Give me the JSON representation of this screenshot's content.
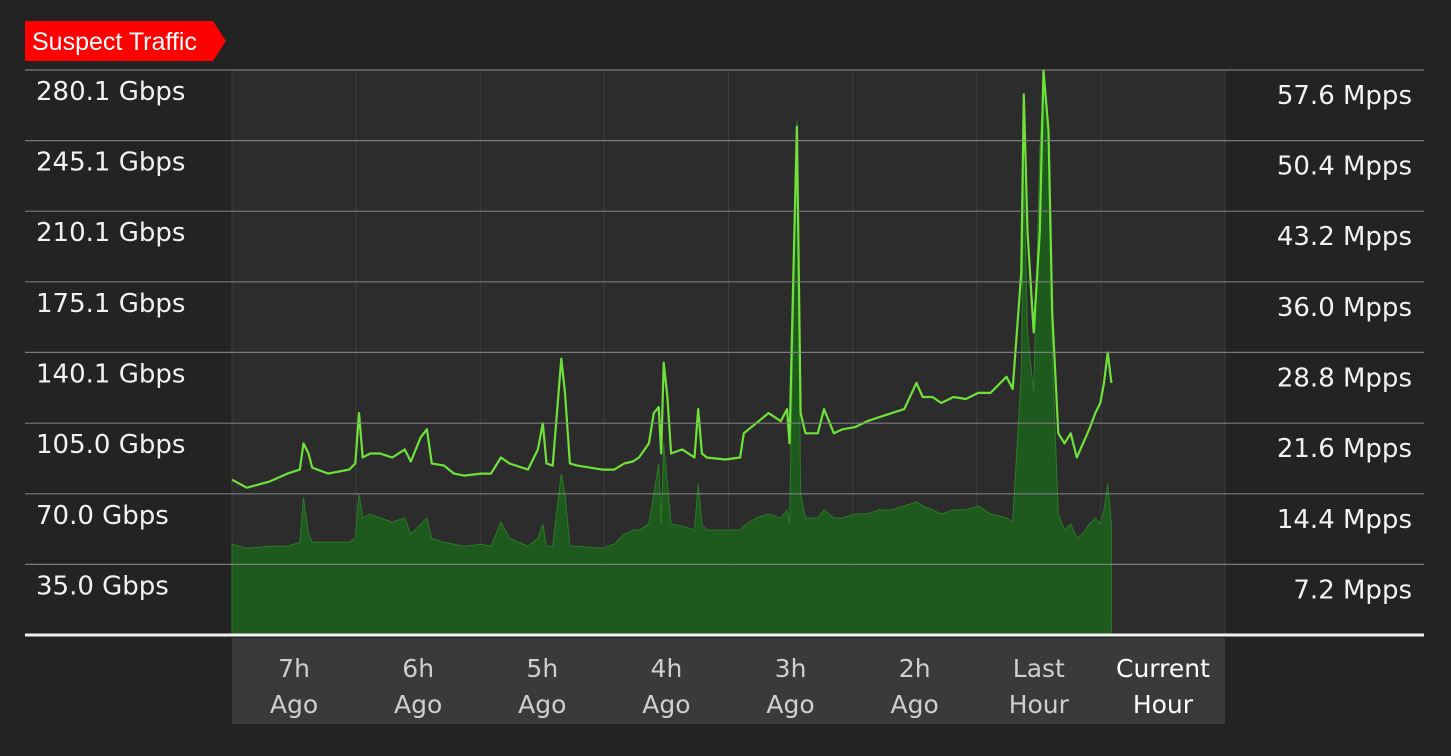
{
  "colors": {
    "background": "#232323",
    "plot_background": "#2c2c2c",
    "gridline": "#8a8a8a",
    "baseline": "#f2f2f2",
    "badge": "#ff0000",
    "text": "#f2f2f2",
    "line_series": "#6fe23a",
    "area_series": "#1d5c1d",
    "x_axis_band": "#3a3a3a"
  },
  "chart_data": {
    "type": "line",
    "title": "Suspect Traffic",
    "grid": true,
    "left_axis": {
      "unit": "Gbps",
      "ylim": [
        0,
        280.1
      ],
      "ticks": [
        35.0,
        70.0,
        105.0,
        140.1,
        175.1,
        210.1,
        245.1,
        280.1
      ],
      "tick_labels": [
        "35.0 Gbps",
        "70.0 Gbps",
        "105.0 Gbps",
        "140.1 Gbps",
        "175.1 Gbps",
        "210.1 Gbps",
        "245.1 Gbps",
        "280.1 Gbps"
      ]
    },
    "right_axis": {
      "unit": "Mpps",
      "ylim": [
        0,
        57.6
      ],
      "ticks": [
        7.2,
        14.4,
        21.6,
        28.8,
        36.0,
        43.2,
        50.4,
        57.6
      ],
      "tick_labels": [
        "7.2 Mpps",
        "14.4 Mpps",
        "21.6 Mpps",
        "28.8 Mpps",
        "36.0 Mpps",
        "43.2 Mpps",
        "50.4 Mpps",
        "57.6 Mpps"
      ]
    },
    "x_categories": [
      [
        "7h",
        "Ago"
      ],
      [
        "6h",
        "Ago"
      ],
      [
        "5h",
        "Ago"
      ],
      [
        "4h",
        "Ago"
      ],
      [
        "3h",
        "Ago"
      ],
      [
        "2h",
        "Ago"
      ],
      [
        "Last",
        "Hour"
      ],
      [
        "Current",
        "Hour"
      ]
    ],
    "x_unit": "hours",
    "x_range": [
      0,
      7.5
    ],
    "series": [
      {
        "style": "line",
        "axis": "left",
        "points": [
          [
            0.0,
            77
          ],
          [
            0.12,
            73
          ],
          [
            0.3,
            76
          ],
          [
            0.45,
            80
          ],
          [
            0.55,
            82
          ],
          [
            0.58,
            95
          ],
          [
            0.62,
            90
          ],
          [
            0.65,
            83
          ],
          [
            0.78,
            80
          ],
          [
            0.95,
            82
          ],
          [
            1.0,
            85
          ],
          [
            1.03,
            110
          ],
          [
            1.06,
            88
          ],
          [
            1.12,
            90
          ],
          [
            1.2,
            90
          ],
          [
            1.3,
            88
          ],
          [
            1.4,
            92
          ],
          [
            1.45,
            86
          ],
          [
            1.53,
            98
          ],
          [
            1.58,
            102
          ],
          [
            1.62,
            85
          ],
          [
            1.72,
            84
          ],
          [
            1.8,
            80
          ],
          [
            1.88,
            79
          ],
          [
            2.02,
            80
          ],
          [
            2.1,
            80
          ],
          [
            2.18,
            88
          ],
          [
            2.25,
            85
          ],
          [
            2.4,
            82
          ],
          [
            2.48,
            92
          ],
          [
            2.52,
            105
          ],
          [
            2.55,
            85
          ],
          [
            2.6,
            84
          ],
          [
            2.67,
            137
          ],
          [
            2.7,
            120
          ],
          [
            2.74,
            85
          ],
          [
            2.8,
            84
          ],
          [
            3.0,
            82
          ],
          [
            3.1,
            82
          ],
          [
            3.18,
            85
          ],
          [
            3.25,
            86
          ],
          [
            3.3,
            88
          ],
          [
            3.38,
            95
          ],
          [
            3.42,
            110
          ],
          [
            3.46,
            113
          ],
          [
            3.48,
            90
          ],
          [
            3.5,
            135
          ],
          [
            3.53,
            118
          ],
          [
            3.56,
            90
          ],
          [
            3.65,
            92
          ],
          [
            3.75,
            88
          ],
          [
            3.78,
            112
          ],
          [
            3.81,
            90
          ],
          [
            3.85,
            88
          ],
          [
            4.0,
            87
          ],
          [
            4.12,
            88
          ],
          [
            4.15,
            100
          ],
          [
            4.25,
            105
          ],
          [
            4.35,
            110
          ],
          [
            4.45,
            106
          ],
          [
            4.5,
            112
          ],
          [
            4.52,
            95
          ],
          [
            4.55,
            175
          ],
          [
            4.58,
            252
          ],
          [
            4.61,
            110
          ],
          [
            4.65,
            100
          ],
          [
            4.75,
            100
          ],
          [
            4.8,
            112
          ],
          [
            4.88,
            100
          ],
          [
            4.95,
            102
          ],
          [
            5.05,
            103
          ],
          [
            5.15,
            106
          ],
          [
            5.25,
            108
          ],
          [
            5.35,
            110
          ],
          [
            5.45,
            112
          ],
          [
            5.55,
            125
          ],
          [
            5.6,
            118
          ],
          [
            5.68,
            118
          ],
          [
            5.75,
            115
          ],
          [
            5.85,
            118
          ],
          [
            5.95,
            117
          ],
          [
            6.05,
            120
          ],
          [
            6.15,
            120
          ],
          [
            6.28,
            128
          ],
          [
            6.33,
            122
          ],
          [
            6.4,
            180
          ],
          [
            6.42,
            268
          ],
          [
            6.45,
            200
          ],
          [
            6.5,
            150
          ],
          [
            6.55,
            200
          ],
          [
            6.58,
            280
          ],
          [
            6.62,
            250
          ],
          [
            6.65,
            160
          ],
          [
            6.7,
            100
          ],
          [
            6.75,
            95
          ],
          [
            6.8,
            100
          ],
          [
            6.85,
            88
          ],
          [
            6.9,
            95
          ],
          [
            6.95,
            102
          ],
          [
            7.0,
            110
          ],
          [
            7.04,
            115
          ],
          [
            7.07,
            125
          ],
          [
            7.1,
            140
          ],
          [
            7.13,
            125
          ]
        ]
      },
      {
        "style": "area",
        "axis": "left",
        "points": [
          [
            0.0,
            45
          ],
          [
            0.12,
            43
          ],
          [
            0.3,
            44
          ],
          [
            0.45,
            44
          ],
          [
            0.55,
            46
          ],
          [
            0.58,
            68
          ],
          [
            0.62,
            50
          ],
          [
            0.65,
            46
          ],
          [
            0.78,
            46
          ],
          [
            0.95,
            46
          ],
          [
            1.0,
            48
          ],
          [
            1.03,
            70
          ],
          [
            1.06,
            58
          ],
          [
            1.12,
            60
          ],
          [
            1.2,
            58
          ],
          [
            1.3,
            56
          ],
          [
            1.4,
            58
          ],
          [
            1.45,
            50
          ],
          [
            1.53,
            55
          ],
          [
            1.58,
            58
          ],
          [
            1.62,
            48
          ],
          [
            1.72,
            46
          ],
          [
            1.8,
            45
          ],
          [
            1.88,
            44
          ],
          [
            2.02,
            45
          ],
          [
            2.1,
            44
          ],
          [
            2.18,
            56
          ],
          [
            2.25,
            48
          ],
          [
            2.4,
            44
          ],
          [
            2.48,
            48
          ],
          [
            2.52,
            55
          ],
          [
            2.55,
            44
          ],
          [
            2.6,
            44
          ],
          [
            2.67,
            80
          ],
          [
            2.7,
            70
          ],
          [
            2.74,
            44
          ],
          [
            2.8,
            44
          ],
          [
            3.0,
            43
          ],
          [
            3.1,
            45
          ],
          [
            3.18,
            50
          ],
          [
            3.25,
            52
          ],
          [
            3.3,
            52
          ],
          [
            3.38,
            55
          ],
          [
            3.42,
            70
          ],
          [
            3.46,
            85
          ],
          [
            3.48,
            55
          ],
          [
            3.5,
            95
          ],
          [
            3.53,
            75
          ],
          [
            3.56,
            55
          ],
          [
            3.65,
            54
          ],
          [
            3.75,
            52
          ],
          [
            3.78,
            75
          ],
          [
            3.81,
            55
          ],
          [
            3.85,
            52
          ],
          [
            4.0,
            52
          ],
          [
            4.12,
            52
          ],
          [
            4.15,
            54
          ],
          [
            4.25,
            58
          ],
          [
            4.35,
            60
          ],
          [
            4.45,
            58
          ],
          [
            4.5,
            62
          ],
          [
            4.52,
            55
          ],
          [
            4.55,
            150
          ],
          [
            4.58,
            255
          ],
          [
            4.61,
            70
          ],
          [
            4.65,
            58
          ],
          [
            4.75,
            58
          ],
          [
            4.8,
            62
          ],
          [
            4.88,
            58
          ],
          [
            4.95,
            58
          ],
          [
            5.05,
            60
          ],
          [
            5.15,
            60
          ],
          [
            5.25,
            62
          ],
          [
            5.35,
            62
          ],
          [
            5.45,
            64
          ],
          [
            5.55,
            66
          ],
          [
            5.6,
            64
          ],
          [
            5.68,
            62
          ],
          [
            5.75,
            60
          ],
          [
            5.85,
            62
          ],
          [
            5.95,
            62
          ],
          [
            6.05,
            64
          ],
          [
            6.15,
            60
          ],
          [
            6.28,
            58
          ],
          [
            6.33,
            56
          ],
          [
            6.4,
            130
          ],
          [
            6.42,
            230
          ],
          [
            6.45,
            150
          ],
          [
            6.5,
            120
          ],
          [
            6.55,
            240
          ],
          [
            6.58,
            275
          ],
          [
            6.62,
            250
          ],
          [
            6.65,
            140
          ],
          [
            6.7,
            60
          ],
          [
            6.75,
            52
          ],
          [
            6.8,
            55
          ],
          [
            6.85,
            48
          ],
          [
            6.9,
            50
          ],
          [
            6.95,
            55
          ],
          [
            7.0,
            58
          ],
          [
            7.04,
            55
          ],
          [
            7.07,
            62
          ],
          [
            7.1,
            75
          ],
          [
            7.13,
            55
          ]
        ]
      }
    ]
  }
}
